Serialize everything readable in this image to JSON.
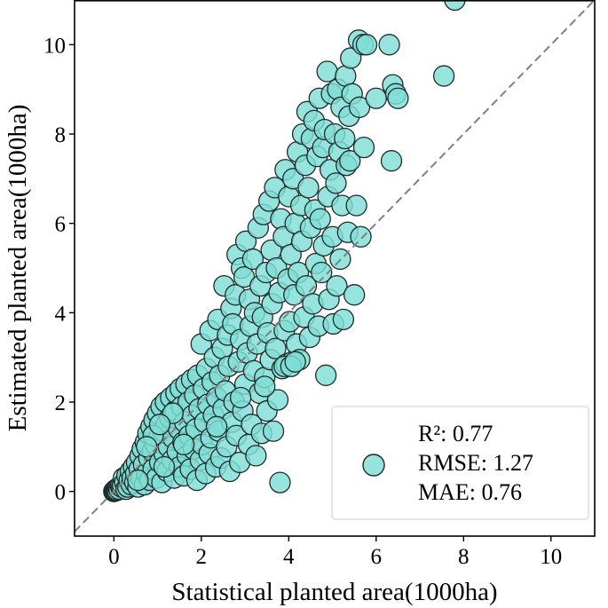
{
  "chart_data": {
    "type": "scatter",
    "xlabel": "Statistical planted area(1000ha)",
    "ylabel": "Estimated planted area(1000ha)",
    "xlim": [
      -0.9,
      11.0
    ],
    "ylim": [
      -1.0,
      11.0
    ],
    "xticks": [
      "0",
      "2",
      "4",
      "6",
      "8",
      "10"
    ],
    "yticks": [
      "0",
      "2",
      "4",
      "6",
      "8",
      "10"
    ],
    "identity_line": true,
    "grid": false,
    "legend_position": "bottom-right",
    "legend_lines": [
      "R²: 0.77",
      "RMSE: 1.27",
      "MAE: 0.76"
    ],
    "marker_color": "#7fded6",
    "marker_edge": "#1f2b2a",
    "points": [
      [
        0.0,
        0.0
      ],
      [
        0.02,
        0.01
      ],
      [
        0.03,
        0.03
      ],
      [
        0.05,
        0.02
      ],
      [
        0.06,
        0.05
      ],
      [
        0.08,
        0.03
      ],
      [
        0.1,
        0.08
      ],
      [
        0.12,
        0.05
      ],
      [
        0.15,
        0.12
      ],
      [
        0.18,
        0.1
      ],
      [
        0.2,
        0.15
      ],
      [
        0.22,
        0.3
      ],
      [
        0.25,
        0.2
      ],
      [
        0.28,
        0.05
      ],
      [
        0.3,
        0.35
      ],
      [
        0.32,
        0.1
      ],
      [
        0.35,
        0.25
      ],
      [
        0.38,
        0.45
      ],
      [
        0.4,
        0.15
      ],
      [
        0.42,
        0.3
      ],
      [
        0.45,
        0.55
      ],
      [
        0.48,
        0.2
      ],
      [
        0.5,
        0.4
      ],
      [
        0.52,
        0.65
      ],
      [
        0.55,
        0.1
      ],
      [
        0.58,
        0.5
      ],
      [
        0.6,
        0.8
      ],
      [
        0.62,
        0.3
      ],
      [
        0.65,
        0.95
      ],
      [
        0.68,
        0.6
      ],
      [
        0.7,
        0.15
      ],
      [
        0.72,
        1.1
      ],
      [
        0.75,
        0.4
      ],
      [
        0.78,
        1.3
      ],
      [
        0.8,
        0.75
      ],
      [
        0.82,
        0.25
      ],
      [
        0.85,
        1.45
      ],
      [
        0.88,
        0.9
      ],
      [
        0.9,
        0.5
      ],
      [
        0.92,
        1.6
      ],
      [
        0.95,
        1.05
      ],
      [
        0.98,
        0.3
      ],
      [
        1.0,
        1.75
      ],
      [
        1.02,
        1.2
      ],
      [
        1.05,
        0.65
      ],
      [
        1.08,
        1.9
      ],
      [
        1.1,
        0.2
      ],
      [
        1.12,
        1.35
      ],
      [
        1.15,
        0.85
      ],
      [
        1.18,
        2.0
      ],
      [
        1.2,
        1.5
      ],
      [
        1.22,
        0.45
      ],
      [
        1.25,
        1.0
      ],
      [
        1.28,
        1.65
      ],
      [
        1.3,
        2.1
      ],
      [
        1.33,
        0.7
      ],
      [
        1.35,
        1.2
      ],
      [
        1.38,
        0.3
      ],
      [
        1.4,
        1.8
      ],
      [
        1.42,
        2.2
      ],
      [
        1.45,
        0.9
      ],
      [
        1.48,
        1.4
      ],
      [
        1.5,
        0.55
      ],
      [
        1.52,
        2.3
      ],
      [
        1.55,
        1.9
      ],
      [
        1.58,
        1.1
      ],
      [
        1.6,
        0.35
      ],
      [
        1.62,
        1.55
      ],
      [
        1.65,
        2.4
      ],
      [
        1.68,
        0.8
      ],
      [
        1.7,
        2.0
      ],
      [
        1.72,
        1.25
      ],
      [
        1.75,
        0.5
      ],
      [
        1.78,
        2.5
      ],
      [
        1.8,
        1.7
      ],
      [
        1.82,
        0.95
      ],
      [
        1.85,
        2.15
      ],
      [
        1.88,
        1.4
      ],
      [
        1.9,
        0.25
      ],
      [
        1.92,
        2.6
      ],
      [
        1.95,
        1.85
      ],
      [
        1.98,
        0.7
      ],
      [
        2.0,
        3.3
      ],
      [
        2.02,
        1.05
      ],
      [
        2.05,
        2.3
      ],
      [
        2.08,
        1.55
      ],
      [
        2.1,
        0.4
      ],
      [
        2.12,
        2.75
      ],
      [
        2.15,
        1.95
      ],
      [
        2.18,
        0.85
      ],
      [
        2.2,
        3.6
      ],
      [
        2.22,
        1.2
      ],
      [
        2.25,
        2.45
      ],
      [
        2.28,
        1.7
      ],
      [
        2.3,
        3.0
      ],
      [
        2.33,
        0.55
      ],
      [
        2.35,
        2.1
      ],
      [
        2.38,
        3.85
      ],
      [
        2.4,
        1.35
      ],
      [
        2.42,
        2.6
      ],
      [
        2.45,
        0.75
      ],
      [
        2.48,
        3.2
      ],
      [
        2.5,
        1.85
      ],
      [
        2.52,
        4.6
      ],
      [
        2.55,
        2.25
      ],
      [
        2.58,
        1.0
      ],
      [
        2.6,
        3.5
      ],
      [
        2.62,
        2.8
      ],
      [
        2.65,
        0.45
      ],
      [
        2.68,
        4.1
      ],
      [
        2.7,
        1.55
      ],
      [
        2.72,
        3.75
      ],
      [
        2.75,
        2.0
      ],
      [
        2.78,
        4.4
      ],
      [
        2.8,
        1.25
      ],
      [
        2.82,
        5.3
      ],
      [
        2.85,
        2.9
      ],
      [
        2.88,
        0.65
      ],
      [
        2.9,
        3.4
      ],
      [
        2.92,
        5.0
      ],
      [
        2.95,
        1.8
      ],
      [
        2.98,
        4.8
      ],
      [
        3.0,
        2.4
      ],
      [
        3.02,
        5.6
      ],
      [
        3.05,
        3.1
      ],
      [
        3.08,
        1.05
      ],
      [
        3.1,
        4.3
      ],
      [
        3.12,
        3.7
      ],
      [
        3.15,
        1.5
      ],
      [
        3.18,
        5.2
      ],
      [
        3.2,
        2.7
      ],
      [
        3.22,
        4.0
      ],
      [
        3.25,
        0.8
      ],
      [
        3.28,
        3.3
      ],
      [
        3.3,
        5.9
      ],
      [
        3.33,
        2.2
      ],
      [
        3.35,
        4.6
      ],
      [
        3.38,
        1.3
      ],
      [
        3.4,
        3.9
      ],
      [
        3.42,
        6.2
      ],
      [
        3.45,
        2.55
      ],
      [
        3.48,
        4.9
      ],
      [
        3.5,
        1.8
      ],
      [
        3.52,
        3.55
      ],
      [
        3.55,
        6.5
      ],
      [
        3.58,
        2.95
      ],
      [
        3.6,
        5.4
      ],
      [
        3.62,
        4.2
      ],
      [
        3.65,
        1.35
      ],
      [
        3.68,
        6.8
      ],
      [
        3.7,
        3.2
      ],
      [
        3.72,
        5.0
      ],
      [
        3.75,
        2.05
      ],
      [
        3.78,
        4.45
      ],
      [
        3.8,
        0.2
      ],
      [
        3.82,
        6.1
      ],
      [
        3.85,
        2.75
      ],
      [
        3.88,
        5.7
      ],
      [
        3.9,
        3.6
      ],
      [
        3.92,
        7.2
      ],
      [
        3.95,
        2.85
      ],
      [
        3.98,
        4.75
      ],
      [
        4.0,
        6.6
      ],
      [
        4.02,
        3.8
      ],
      [
        4.05,
        5.3
      ],
      [
        4.08,
        2.9
      ],
      [
        4.1,
        7.0
      ],
      [
        4.12,
        4.4
      ],
      [
        4.15,
        6.0
      ],
      [
        4.18,
        3.3
      ],
      [
        4.2,
        7.6
      ],
      [
        4.22,
        4.9
      ],
      [
        4.25,
        2.95
      ],
      [
        4.28,
        6.4
      ],
      [
        4.3,
        5.6
      ],
      [
        4.32,
        8.0
      ],
      [
        4.35,
        3.9
      ],
      [
        4.38,
        7.3
      ],
      [
        4.4,
        4.6
      ],
      [
        4.42,
        8.5
      ],
      [
        4.45,
        6.8
      ],
      [
        4.48,
        3.45
      ],
      [
        4.5,
        5.9
      ],
      [
        4.52,
        7.9
      ],
      [
        4.55,
        4.2
      ],
      [
        4.58,
        8.3
      ],
      [
        4.6,
        6.3
      ],
      [
        4.62,
        5.1
      ],
      [
        4.65,
        7.5
      ],
      [
        4.68,
        3.7
      ],
      [
        4.7,
        8.8
      ],
      [
        4.72,
        6.1
      ],
      [
        4.75,
        4.9
      ],
      [
        4.78,
        7.7
      ],
      [
        4.8,
        5.5
      ],
      [
        4.82,
        8.1
      ],
      [
        4.85,
        2.6
      ],
      [
        4.88,
        9.4
      ],
      [
        4.9,
        6.6
      ],
      [
        4.92,
        4.3
      ],
      [
        4.95,
        7.2
      ],
      [
        4.98,
        8.9
      ],
      [
        5.0,
        5.7
      ],
      [
        5.02,
        3.75
      ],
      [
        5.05,
        8.0
      ],
      [
        5.08,
        6.9
      ],
      [
        5.1,
        4.6
      ],
      [
        5.12,
        9.0
      ],
      [
        5.15,
        7.6
      ],
      [
        5.18,
        5.2
      ],
      [
        5.2,
        8.6
      ],
      [
        5.22,
        6.4
      ],
      [
        5.25,
        3.85
      ],
      [
        5.28,
        7.9
      ],
      [
        5.3,
        9.3
      ],
      [
        5.32,
        7.3
      ],
      [
        5.35,
        5.8
      ],
      [
        5.38,
        8.4
      ],
      [
        5.4,
        7.4
      ],
      [
        5.42,
        9.7
      ],
      [
        5.45,
        8.9
      ],
      [
        5.5,
        4.4
      ],
      [
        5.55,
        6.4
      ],
      [
        5.6,
        10.1
      ],
      [
        5.62,
        8.6
      ],
      [
        5.65,
        5.7
      ],
      [
        5.7,
        10.0
      ],
      [
        5.72,
        7.7
      ],
      [
        5.78,
        10.0
      ],
      [
        6.0,
        8.8
      ],
      [
        6.3,
        10.0
      ],
      [
        6.35,
        7.4
      ],
      [
        6.38,
        9.1
      ],
      [
        6.45,
        8.9
      ],
      [
        6.5,
        8.8
      ],
      [
        7.55,
        9.3
      ],
      [
        7.8,
        11.0
      ],
      [
        0.55,
        0.25
      ],
      [
        1.15,
        0.55
      ],
      [
        1.6,
        1.05
      ],
      [
        2.35,
        1.45
      ],
      [
        2.9,
        2.1
      ],
      [
        3.45,
        2.35
      ],
      [
        3.9,
        2.8
      ],
      [
        4.05,
        2.8
      ],
      [
        4.15,
        2.9
      ],
      [
        0.9,
        1.25
      ],
      [
        1.35,
        1.75
      ],
      [
        1.05,
        1.5
      ],
      [
        0.75,
        1.0
      ]
    ]
  }
}
